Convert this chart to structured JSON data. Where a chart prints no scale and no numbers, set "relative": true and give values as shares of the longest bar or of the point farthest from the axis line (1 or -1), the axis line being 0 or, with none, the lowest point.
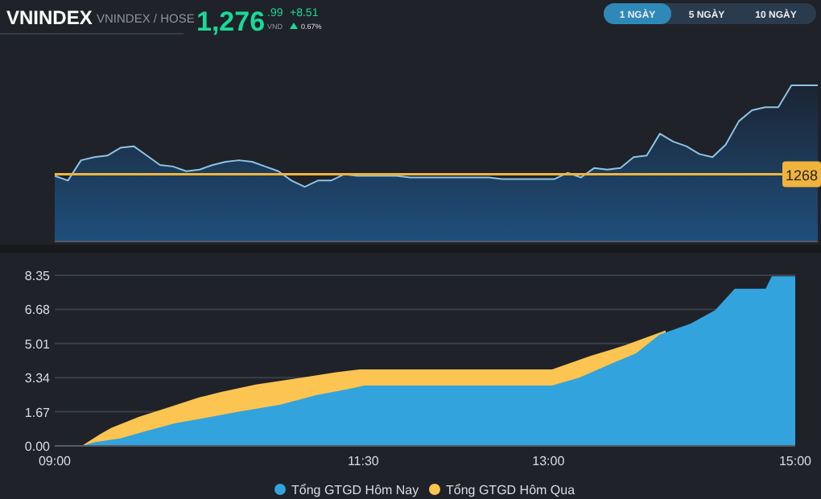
{
  "chart_data": [
    {
      "type": "area",
      "title": "VNINDEX",
      "subtitle": "VNINDEX / HOSE",
      "annotations": [
        "1,276.99",
        "VND",
        "+8.51",
        "0.67%",
        "1 NGÀY",
        "5 NGÀY",
        "10 NGÀY",
        "1268"
      ],
      "relative": true,
      "tick_labels": false,
      "categories": [
        null,
        null,
        null,
        null,
        null,
        null,
        null,
        null,
        null,
        null,
        null,
        null,
        null,
        null,
        null,
        null,
        null,
        null,
        null,
        null,
        null,
        null,
        null,
        null,
        null,
        null,
        null,
        null,
        null,
        null,
        null,
        null,
        null,
        null,
        null,
        null,
        null,
        null,
        null,
        null,
        null,
        null,
        null,
        null,
        null,
        null,
        null,
        null,
        null,
        null,
        null,
        null,
        null,
        null,
        null,
        null,
        null,
        null,
        null
      ],
      "ref_lines": [
        {
          "axis": "y",
          "value": 0.43,
          "color": "#f0b43c"
        }
      ],
      "series": [
        {
          "color": "#8cc4e8",
          "values": [
            0.42,
            0.39,
            0.52,
            0.54,
            0.55,
            0.6,
            0.61,
            0.55,
            0.49,
            0.48,
            0.45,
            0.46,
            0.49,
            0.51,
            0.52,
            0.51,
            0.48,
            0.45,
            0.39,
            0.35,
            0.39,
            0.39,
            0.43,
            0.42,
            0.42,
            0.42,
            0.42,
            0.41,
            0.41,
            0.41,
            0.41,
            0.41,
            0.41,
            0.41,
            0.4,
            0.4,
            0.4,
            0.4,
            0.4,
            0.44,
            0.41,
            0.47,
            0.46,
            0.47,
            0.54,
            0.55,
            0.69,
            0.64,
            0.61,
            0.56,
            0.54,
            0.62,
            0.77,
            0.84,
            0.86,
            0.86,
            1,
            1,
            1
          ]
        }
      ]
    },
    {
      "type": "area",
      "xlim": [
        9,
        15
      ],
      "ylim": [
        0,
        8.35
      ],
      "grid": "y",
      "legend": "bottom",
      "xticks": [
        {
          "value": 9,
          "label": "09:00"
        },
        {
          "value": 11.5,
          "label": "11:30"
        },
        {
          "value": 13,
          "label": "13:00"
        },
        {
          "value": 15,
          "label": "15:00"
        }
      ],
      "yticks": [
        {
          "value": 0,
          "label": "0.00"
        },
        1.67,
        3.34,
        5.01,
        6.68,
        8.35
      ],
      "series": [
        {
          "name": "Tổng GTGD Hôm Qua",
          "color": "#fcc450",
          "x": [
            9.22,
            9.28,
            9.37,
            9.46,
            9.68,
            9.93,
            10.17,
            10.34,
            10.63,
            11.0,
            11.28,
            11.47,
            13.03,
            13.34,
            13.62,
            13.95
          ],
          "values": [
            0,
            0.24,
            0.58,
            0.89,
            1.42,
            1.9,
            2.37,
            2.63,
            3.0,
            3.34,
            3.6,
            3.74,
            3.74,
            4.4,
            4.92,
            5.65
          ]
        },
        {
          "name": "Tổng GTGD Hôm Nay",
          "color": "#33a3dd",
          "x": [
            9.22,
            9.32,
            9.53,
            9.73,
            9.98,
            10.22,
            10.5,
            10.83,
            11.11,
            11.4,
            11.51,
            13.03,
            13.25,
            13.5,
            13.71,
            13.9,
            14.15,
            14.35,
            14.51,
            14.76,
            14.81,
            15
          ],
          "values": [
            0,
            0.18,
            0.36,
            0.71,
            1.11,
            1.37,
            1.68,
            2.02,
            2.47,
            2.81,
            2.95,
            2.95,
            3.34,
            4.0,
            4.53,
            5.45,
            5.98,
            6.64,
            7.69,
            7.69,
            8.3,
            8.3
          ]
        }
      ]
    }
  ]
}
